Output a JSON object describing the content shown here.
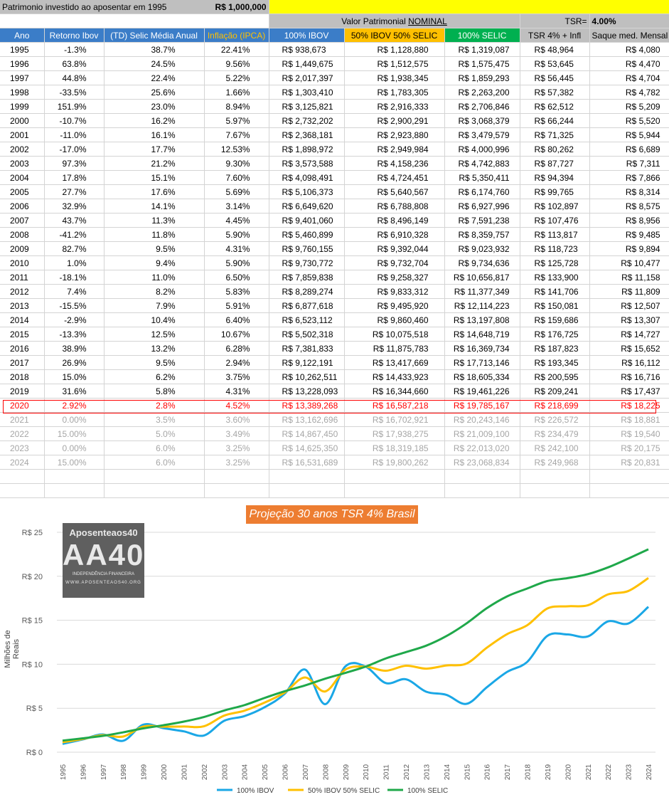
{
  "sheet": {
    "title": "Patrimonio investido ao aposentar em 1995",
    "amount": "R$ 1,000,000",
    "nominal_label_prefix": "Valor Patrimonial ",
    "nominal_label_underlined": "NOMINAL",
    "tsr_label": "TSR=",
    "tsr_value": "4.00%",
    "headers": [
      "Ano",
      "Retorno Ibov",
      "(TD) Selic Média Anual",
      "Inflação (IPCA)",
      "100% IBOV",
      "50% IBOV 50% SELIC",
      "100% SELIC",
      "TSR 4% + Infl",
      "Saque med. Mensal"
    ],
    "rows": [
      [
        "1995",
        "-1.3%",
        "38.7%",
        "22.41%",
        "R$ 938,673",
        "R$ 1,128,880",
        "R$ 1,319,087",
        "R$ 48,964",
        "R$ 4,080"
      ],
      [
        "1996",
        "63.8%",
        "24.5%",
        "9.56%",
        "R$ 1,449,675",
        "R$ 1,512,575",
        "R$ 1,575,475",
        "R$ 53,645",
        "R$ 4,470"
      ],
      [
        "1997",
        "44.8%",
        "22.4%",
        "5.22%",
        "R$ 2,017,397",
        "R$ 1,938,345",
        "R$ 1,859,293",
        "R$ 56,445",
        "R$ 4,704"
      ],
      [
        "1998",
        "-33.5%",
        "25.6%",
        "1.66%",
        "R$ 1,303,410",
        "R$ 1,783,305",
        "R$ 2,263,200",
        "R$ 57,382",
        "R$ 4,782"
      ],
      [
        "1999",
        "151.9%",
        "23.0%",
        "8.94%",
        "R$ 3,125,821",
        "R$ 2,916,333",
        "R$ 2,706,846",
        "R$ 62,512",
        "R$ 5,209"
      ],
      [
        "2000",
        "-10.7%",
        "16.2%",
        "5.97%",
        "R$ 2,732,202",
        "R$ 2,900,291",
        "R$ 3,068,379",
        "R$ 66,244",
        "R$ 5,520"
      ],
      [
        "2001",
        "-11.0%",
        "16.1%",
        "7.67%",
        "R$ 2,368,181",
        "R$ 2,923,880",
        "R$ 3,479,579",
        "R$ 71,325",
        "R$ 5,944"
      ],
      [
        "2002",
        "-17.0%",
        "17.7%",
        "12.53%",
        "R$ 1,898,972",
        "R$ 2,949,984",
        "R$ 4,000,996",
        "R$ 80,262",
        "R$ 6,689"
      ],
      [
        "2003",
        "97.3%",
        "21.2%",
        "9.30%",
        "R$ 3,573,588",
        "R$ 4,158,236",
        "R$ 4,742,883",
        "R$ 87,727",
        "R$ 7,311"
      ],
      [
        "2004",
        "17.8%",
        "15.1%",
        "7.60%",
        "R$ 4,098,491",
        "R$ 4,724,451",
        "R$ 5,350,411",
        "R$ 94,394",
        "R$ 7,866"
      ],
      [
        "2005",
        "27.7%",
        "17.6%",
        "5.69%",
        "R$ 5,106,373",
        "R$ 5,640,567",
        "R$ 6,174,760",
        "R$ 99,765",
        "R$ 8,314"
      ],
      [
        "2006",
        "32.9%",
        "14.1%",
        "3.14%",
        "R$ 6,649,620",
        "R$ 6,788,808",
        "R$ 6,927,996",
        "R$ 102,897",
        "R$ 8,575"
      ],
      [
        "2007",
        "43.7%",
        "11.3%",
        "4.45%",
        "R$ 9,401,060",
        "R$ 8,496,149",
        "R$ 7,591,238",
        "R$ 107,476",
        "R$ 8,956"
      ],
      [
        "2008",
        "-41.2%",
        "11.8%",
        "5.90%",
        "R$ 5,460,899",
        "R$ 6,910,328",
        "R$ 8,359,757",
        "R$ 113,817",
        "R$ 9,485"
      ],
      [
        "2009",
        "82.7%",
        "9.5%",
        "4.31%",
        "R$ 9,760,155",
        "R$ 9,392,044",
        "R$ 9,023,932",
        "R$ 118,723",
        "R$ 9,894"
      ],
      [
        "2010",
        "1.0%",
        "9.4%",
        "5.90%",
        "R$ 9,730,772",
        "R$ 9,732,704",
        "R$ 9,734,636",
        "R$ 125,728",
        "R$ 10,477"
      ],
      [
        "2011",
        "-18.1%",
        "11.0%",
        "6.50%",
        "R$ 7,859,838",
        "R$ 9,258,327",
        "R$ 10,656,817",
        "R$ 133,900",
        "R$ 11,158"
      ],
      [
        "2012",
        "7.4%",
        "8.2%",
        "5.83%",
        "R$ 8,289,274",
        "R$ 9,833,312",
        "R$ 11,377,349",
        "R$ 141,706",
        "R$ 11,809"
      ],
      [
        "2013",
        "-15.5%",
        "7.9%",
        "5.91%",
        "R$ 6,877,618",
        "R$ 9,495,920",
        "R$ 12,114,223",
        "R$ 150,081",
        "R$ 12,507"
      ],
      [
        "2014",
        "-2.9%",
        "10.4%",
        "6.40%",
        "R$ 6,523,112",
        "R$ 9,860,460",
        "R$ 13,197,808",
        "R$ 159,686",
        "R$ 13,307"
      ],
      [
        "2015",
        "-13.3%",
        "12.5%",
        "10.67%",
        "R$ 5,502,318",
        "R$ 10,075,518",
        "R$ 14,648,719",
        "R$ 176,725",
        "R$ 14,727"
      ],
      [
        "2016",
        "38.9%",
        "13.2%",
        "6.28%",
        "R$ 7,381,833",
        "R$ 11,875,783",
        "R$ 16,369,734",
        "R$ 187,823",
        "R$ 15,652"
      ],
      [
        "2017",
        "26.9%",
        "9.5%",
        "2.94%",
        "R$ 9,122,191",
        "R$ 13,417,669",
        "R$ 17,713,146",
        "R$ 193,345",
        "R$ 16,112"
      ],
      [
        "2018",
        "15.0%",
        "6.2%",
        "3.75%",
        "R$ 10,262,511",
        "R$ 14,433,923",
        "R$ 18,605,334",
        "R$ 200,595",
        "R$ 16,716"
      ],
      [
        "2019",
        "31.6%",
        "5.8%",
        "4.31%",
        "R$ 13,228,093",
        "R$ 16,344,660",
        "R$ 19,461,226",
        "R$ 209,241",
        "R$ 17,437"
      ],
      [
        "2020",
        "2.92%",
        "2.8%",
        "4.52%",
        "R$ 13,389,268",
        "R$ 16,587,218",
        "R$ 19,785,167",
        "R$ 218,699",
        "R$ 18,225"
      ],
      [
        "2021",
        "0.00%",
        "3.5%",
        "3.60%",
        "R$ 13,162,696",
        "R$ 16,702,921",
        "R$ 20,243,146",
        "R$ 226,572",
        "R$ 18,881"
      ],
      [
        "2022",
        "15.00%",
        "5.0%",
        "3.49%",
        "R$ 14,867,450",
        "R$ 17,938,275",
        "R$ 21,009,100",
        "R$ 234,479",
        "R$ 19,540"
      ],
      [
        "2023",
        "0.00%",
        "6.0%",
        "3.25%",
        "R$ 14,625,350",
        "R$ 18,319,185",
        "R$ 22,013,020",
        "R$ 242,100",
        "R$ 20,175"
      ],
      [
        "2024",
        "15.00%",
        "6.0%",
        "3.25%",
        "R$ 16,531,689",
        "R$ 19,800,262",
        "R$ 23,068,834",
        "R$ 249,968",
        "R$ 20,831"
      ]
    ]
  },
  "logo": {
    "line1": "Aposenteaos40",
    "line2": "AA40",
    "line3": "INDEPENDÊNCIA FINANCEIRA",
    "line4": "WWW.APOSENTEAOS40.ORG"
  },
  "colors": {
    "ibov": "#1aa7e6",
    "mix": "#ffc000",
    "selic": "#1fa84a",
    "title_bg": "#ed7d31"
  },
  "chart_data": {
    "type": "line",
    "title": "Projeção 30 anos TSR 4% Brasil",
    "ylabel": "Milhões de Reais",
    "xlabel": "",
    "ylim": [
      0,
      25
    ],
    "yticks": [
      0,
      5,
      10,
      15,
      20,
      25
    ],
    "ytick_labels": [
      "R$ 0",
      "R$ 5",
      "R$ 10",
      "R$ 15",
      "R$ 20",
      "R$ 25"
    ],
    "grid": true,
    "legend": "bottom",
    "categories": [
      "1995",
      "1996",
      "1997",
      "1998",
      "1999",
      "2000",
      "2001",
      "2002",
      "2003",
      "2004",
      "2005",
      "2006",
      "2007",
      "2008",
      "2009",
      "2010",
      "2011",
      "2012",
      "2013",
      "2014",
      "2015",
      "2016",
      "2017",
      "2018",
      "2019",
      "2020",
      "2021",
      "2022",
      "2023",
      "2024"
    ],
    "series": [
      {
        "name": "100% IBOV",
        "color": "#1aa7e6",
        "values": [
          0.94,
          1.45,
          2.02,
          1.3,
          3.13,
          2.73,
          2.37,
          1.9,
          3.57,
          4.1,
          5.11,
          6.65,
          9.4,
          5.46,
          9.76,
          9.73,
          7.86,
          8.29,
          6.88,
          6.52,
          5.5,
          7.38,
          9.12,
          10.26,
          13.23,
          13.39,
          13.16,
          14.87,
          14.63,
          16.53
        ]
      },
      {
        "name": "50% IBOV 50% SELIC",
        "color": "#ffc000",
        "values": [
          1.13,
          1.51,
          1.94,
          1.78,
          2.92,
          2.9,
          2.92,
          2.95,
          4.16,
          4.72,
          5.64,
          6.79,
          8.5,
          6.91,
          9.39,
          9.73,
          9.26,
          9.83,
          9.5,
          9.86,
          10.08,
          11.88,
          13.42,
          14.43,
          16.34,
          16.59,
          16.7,
          17.94,
          18.32,
          19.8
        ]
      },
      {
        "name": "100% SELIC",
        "color": "#1fa84a",
        "values": [
          1.32,
          1.58,
          1.86,
          2.26,
          2.71,
          3.07,
          3.48,
          4.0,
          4.74,
          5.35,
          6.17,
          6.93,
          7.59,
          8.36,
          9.02,
          9.73,
          10.66,
          11.38,
          12.11,
          13.2,
          14.65,
          16.37,
          17.71,
          18.61,
          19.46,
          19.79,
          20.24,
          21.01,
          22.01,
          23.07
        ]
      }
    ]
  }
}
